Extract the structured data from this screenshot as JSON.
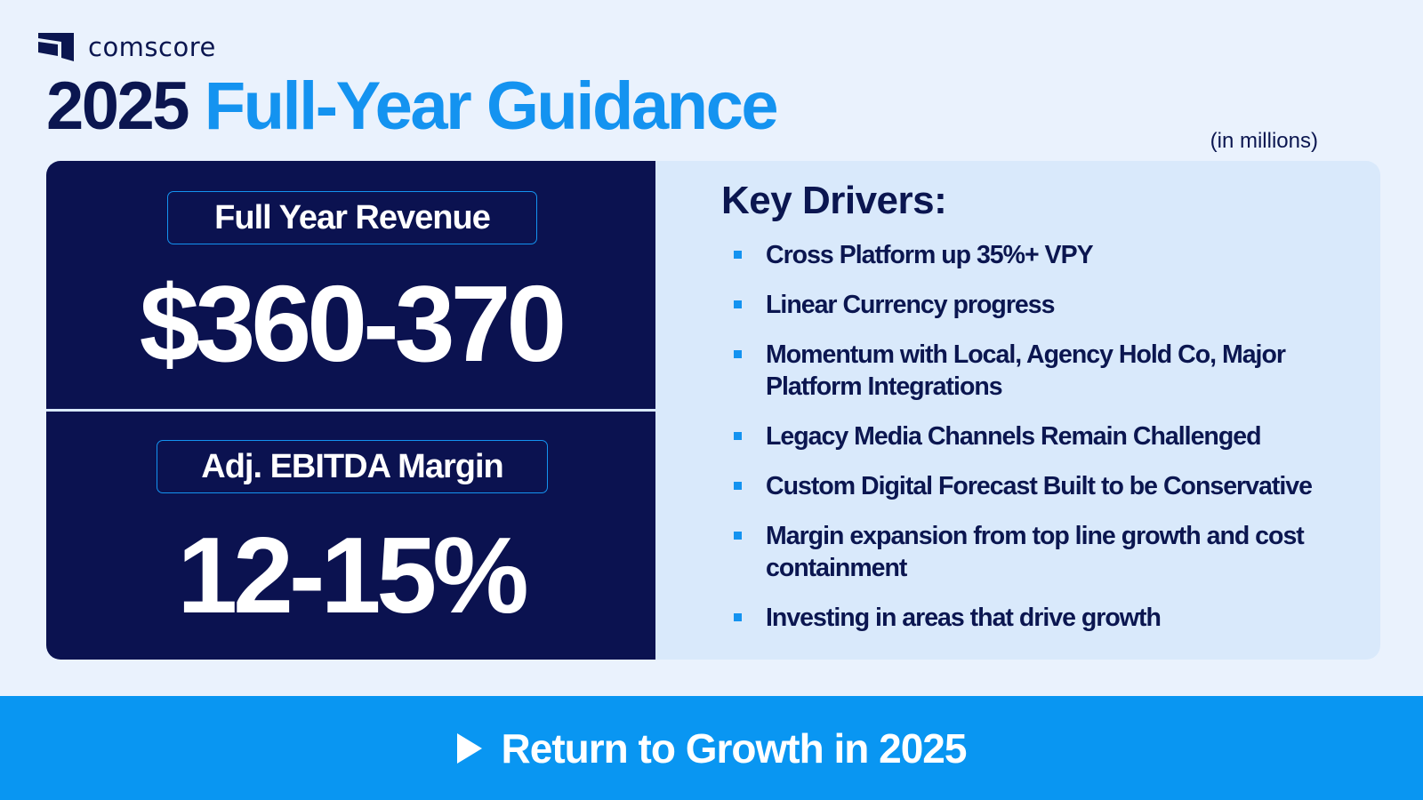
{
  "brand": {
    "name": "comscore",
    "logo_icon": "comscore-logo-icon"
  },
  "title": {
    "year": "2025",
    "rest": "Full-Year Guidance"
  },
  "units_note": "(in millions)",
  "guidance": {
    "revenue": {
      "label": "Full Year Revenue",
      "value": "$360-370"
    },
    "ebitda": {
      "label": "Adj. EBITDA Margin",
      "value": "12-15%"
    }
  },
  "key_drivers": {
    "title": "Key Drivers:",
    "items": [
      "Cross Platform up 35%+ VPY",
      "Linear Currency progress",
      "Momentum with Local, Agency Hold Co, Major Platform Integrations",
      "Legacy Media Channels Remain Challenged",
      "Custom Digital Forecast Built to be Conservative",
      "Margin expansion from top line growth and cost containment",
      "Investing in areas that drive growth"
    ]
  },
  "footer": {
    "text": "Return to Growth in 2025",
    "icon": "play-icon"
  },
  "colors": {
    "navy": "#0b1250",
    "accent_blue": "#1493f0",
    "footer_blue": "#0996f2",
    "panel_light": "#d9e9fb",
    "background": "#eaf2fd"
  }
}
